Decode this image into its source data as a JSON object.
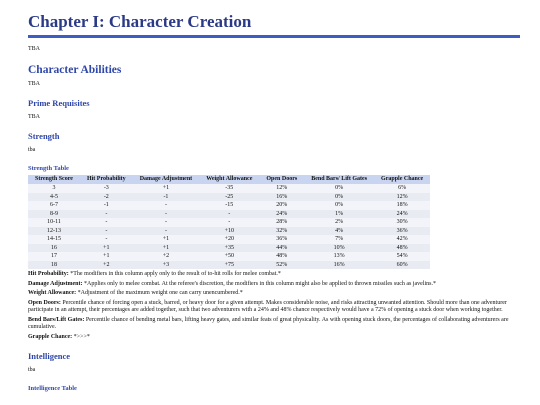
{
  "header": {
    "title": "Chapter I: Character Creation",
    "intro": "TBA"
  },
  "abilities": {
    "title": "Character Abilities",
    "text": "TBA"
  },
  "prime": {
    "title": "Prime Requisites",
    "text": "TBA"
  },
  "strength": {
    "title": "Strength",
    "text": "tba",
    "table_title": "Strength Table",
    "table": {
      "headers": [
        "Strength Score",
        "Hit Probability",
        "Damage Adjustment",
        "Weight Allowance",
        "Open Doors",
        "Bend Bars/ Lift Gates",
        "Grapple Chance"
      ],
      "rows": [
        [
          "3",
          "-3",
          "+1",
          "-35",
          "12%",
          "0%",
          "6%"
        ],
        [
          "4-5",
          "-2",
          "-1",
          "-25",
          "16%",
          "0%",
          "12%"
        ],
        [
          "6-7",
          "-1",
          "-",
          "-15",
          "20%",
          "0%",
          "18%"
        ],
        [
          "8-9",
          "-",
          "-",
          "-",
          "24%",
          "1%",
          "24%"
        ],
        [
          "10-11",
          "-",
          "-",
          "-",
          "28%",
          "2%",
          "30%"
        ],
        [
          "12-13",
          "-",
          "-",
          "+10",
          "32%",
          "4%",
          "36%"
        ],
        [
          "14-15",
          "-",
          "+1",
          "+20",
          "36%",
          "7%",
          "42%"
        ],
        [
          "16",
          "+1",
          "+1",
          "+35",
          "44%",
          "10%",
          "48%"
        ],
        [
          "17",
          "+1",
          "+2",
          "+50",
          "48%",
          "13%",
          "54%"
        ],
        [
          "18",
          "+2",
          "+3",
          "+75",
          "52%",
          "16%",
          "60%"
        ]
      ]
    },
    "notes": [
      {
        "label": "Hit Probability:",
        "text": "*The modifiers in this column apply only to the result of to-hit rolls for melee combat.*"
      },
      {
        "label": "Damage Adjustment:",
        "text": "*Applies only to melee combat. At the referee's discretion, the modifiers in this column might also be applied to thrown missiles such as javelins.*"
      },
      {
        "label": "Weight Allowance:",
        "text": "*Adjustment of the maximum weight one can carry unencumbered.*"
      },
      {
        "label": "Open Doors:",
        "text": "Percentile chance of forcing open a stuck, barred, or heavy door for a given attempt. Makes considerable noise, and risks attracting unwanted attention. Should more than one adventurer participate in an attempt, their percentages are added together, such that two adventurers with a 24% and 48% chance respectively would have a 72% of opening a stuck door when working together."
      },
      {
        "label": "Bend Bars/Lift Gates:",
        "text": "Percentile chance of bending metal bars, lifting heavy gates, and similar feats of great physicality. As with opening stuck doors, the percentages of collaborating adventurers are cumulative."
      },
      {
        "label": "Grapple Chance:",
        "text": "*>>>*"
      }
    ]
  },
  "intelligence": {
    "title": "Intelligence",
    "text": "tba",
    "table_title": "Intelligence Table"
  }
}
